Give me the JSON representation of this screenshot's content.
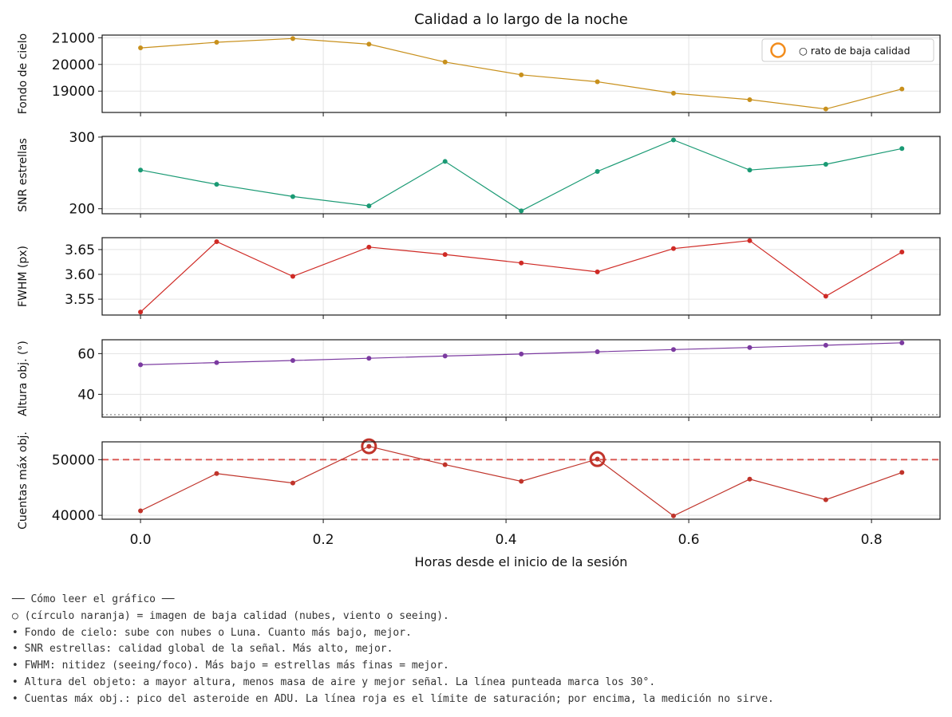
{
  "chart_data": {
    "type": "line",
    "title": "Calidad a lo largo de la noche",
    "xlabel": "Horas desde el inicio de la sesión",
    "x": [
      0.0,
      0.0833,
      0.1667,
      0.25,
      0.3333,
      0.4167,
      0.5,
      0.5833,
      0.6667,
      0.75,
      0.8333
    ],
    "xlim": [
      -0.042,
      0.875
    ],
    "xticks": [
      "0.0",
      "0.2",
      "0.4",
      "0.6",
      "0.8"
    ],
    "xtick_values": [
      0.0,
      0.2,
      0.4,
      0.6,
      0.8
    ],
    "grid": true,
    "panels": [
      {
        "ylabel": "Fondo de cielo",
        "color": "#c8901c",
        "values": [
          20620,
          20830,
          20970,
          20760,
          20090,
          19610,
          19350,
          18920,
          18680,
          18330,
          19080
        ],
        "ylim": [
          18200,
          21100
        ],
        "yticks": [
          "19000",
          "20000",
          "21000"
        ],
        "ytick_values": [
          19000,
          20000,
          21000
        ],
        "legend": {
          "label": "○ rato de baja calidad",
          "color": "#f28c1c",
          "loc": "upper right"
        }
      },
      {
        "ylabel": "SNR estrellas",
        "color": "#1a9a74",
        "values": [
          254,
          234,
          217,
          204,
          266,
          197,
          252,
          296,
          254,
          262,
          284
        ],
        "ylim": [
          193,
          301
        ],
        "yticks": [
          "200",
          "300"
        ],
        "ytick_values": [
          200,
          300
        ]
      },
      {
        "ylabel": "FWHM (px)",
        "color": "#cf2a25",
        "values": [
          3.524,
          3.666,
          3.596,
          3.655,
          3.64,
          3.623,
          3.605,
          3.652,
          3.668,
          3.556,
          3.645
        ],
        "ylim": [
          3.518,
          3.674
        ],
        "yticks": [
          "3.55",
          "3.60",
          "3.65"
        ],
        "ytick_values": [
          3.55,
          3.6,
          3.65
        ]
      },
      {
        "ylabel": "Altura obj. (°)",
        "color": "#7b3aa0",
        "values": [
          54.5,
          55.6,
          56.6,
          57.7,
          58.8,
          59.8,
          60.9,
          62.0,
          63.0,
          64.1,
          65.3
        ],
        "ylim": [
          28.8,
          66.8
        ],
        "yticks": [
          "40",
          "60"
        ],
        "ytick_values": [
          40,
          60
        ],
        "reference_line": {
          "y": 30,
          "style": "dotted",
          "color": "#808080"
        }
      },
      {
        "ylabel": "Cuentas máx obj.",
        "color": "#c0342b",
        "values": [
          40800,
          47500,
          45800,
          52400,
          49100,
          46100,
          50100,
          39900,
          46500,
          42800,
          47700
        ],
        "ylim": [
          39300,
          53200
        ],
        "yticks": [
          "40000",
          "50000"
        ],
        "ytick_values": [
          40000,
          50000
        ],
        "reference_line": {
          "y": 50000,
          "style": "dashed",
          "color": "#d9534f"
        },
        "flagged_points": [
          3,
          6
        ],
        "flag_color": "#c0342b"
      }
    ]
  },
  "notes": [
    "── Cómo leer el gráfico ──",
    "○ (círculo naranja) = imagen de baja calidad (nubes, viento o seeing).",
    "• Fondo de cielo: sube con nubes o Luna. Cuanto más bajo, mejor.",
    "• SNR estrellas: calidad global de la señal. Más alto, mejor.",
    "• FWHM: nitidez (seeing/foco). Más bajo = estrellas más finas = mejor.",
    "• Altura del objeto: a mayor altura, menos masa de aire y mejor señal. La línea punteada marca los 30°.",
    "• Cuentas máx obj.: pico del asteroide en ADU. La línea roja es el límite de saturación; por encima, la medición no sirve."
  ]
}
